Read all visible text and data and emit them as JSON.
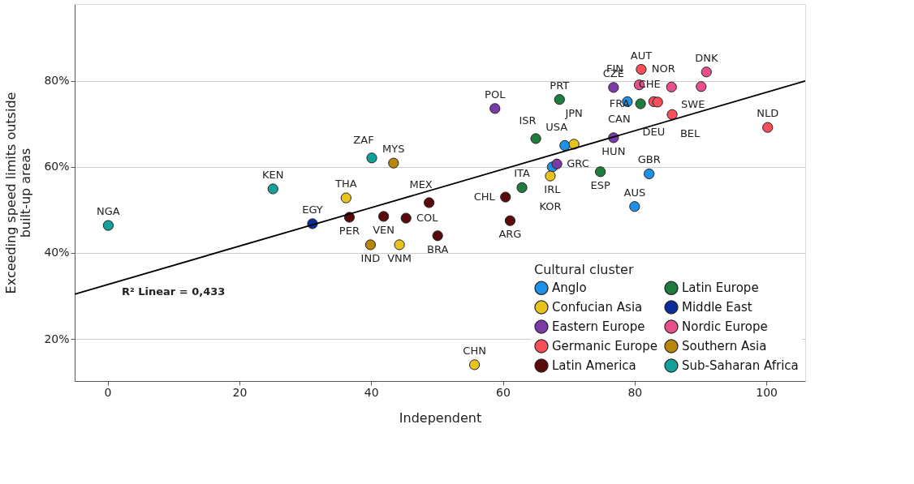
{
  "chart_data": {
    "type": "scatter",
    "xlabel": "Independent",
    "ylabel": "Exceeding speed limits outside built-up areas",
    "legend_title": "Cultural cluster",
    "xlim": [
      -5.0,
      105.9
    ],
    "ylim": [
      10.2,
      97.9
    ],
    "xticks": [
      0,
      20,
      40,
      60,
      80,
      100
    ],
    "yticks": [
      {
        "value": 20,
        "label": "20%"
      },
      {
        "value": 40,
        "label": "40%"
      },
      {
        "value": 60,
        "label": "60%"
      },
      {
        "value": 80,
        "label": "80%"
      }
    ],
    "grid": "y",
    "legend": "bottom right",
    "marker": "circle",
    "series": [
      {
        "name": "Anglo",
        "color": "#1e90e6",
        "x": [
          78.9,
          69.4,
          67.5,
          82.2,
          80.0
        ],
        "values": [
          75.2,
          65.0,
          60.0,
          58.4,
          50.8
        ]
      },
      {
        "name": "Confucian Asia",
        "color": "#e8c31e",
        "x": [
          70.8,
          67.2,
          55.7,
          36.2,
          44.3
        ],
        "values": [
          65.3,
          57.9,
          14.0,
          52.8,
          41.9
        ]
      },
      {
        "name": "Eastern Europe",
        "color": "#7a3ba8",
        "x": [
          58.8,
          76.8,
          76.8,
          68.2
        ],
        "values": [
          73.6,
          78.5,
          66.8,
          60.7
        ]
      },
      {
        "name": "Germanic Europe",
        "color": "#f5505a",
        "x": [
          81.0,
          82.9,
          83.5,
          85.7,
          100.2
        ],
        "values": [
          82.7,
          75.2,
          75.1,
          72.2,
          69.2
        ]
      },
      {
        "name": "Latin America",
        "color": "#5a0a0a",
        "x": [
          36.7,
          41.9,
          45.3,
          48.8,
          50.1,
          60.4,
          61.1
        ],
        "values": [
          48.3,
          48.5,
          48.1,
          51.7,
          44.0,
          53.0,
          47.5
        ]
      },
      {
        "name": "Latin Europe",
        "color": "#1e7d3c",
        "x": [
          68.6,
          65.0,
          80.9,
          74.8,
          62.9
        ],
        "values": [
          75.7,
          66.6,
          74.7,
          58.9,
          55.2
        ]
      },
      {
        "name": "Middle East",
        "color": "#0a2d9b",
        "x": [
          31.1
        ],
        "values": [
          46.8
        ]
      },
      {
        "name": "Nordic Europe",
        "color": "#e8508c",
        "x": [
          80.7,
          85.6,
          90.9,
          90.1
        ],
        "values": [
          79.1,
          78.6,
          82.1,
          78.7
        ]
      },
      {
        "name": "Southern Asia",
        "color": "#b8860b",
        "x": [
          39.9,
          43.4
        ],
        "values": [
          41.9,
          60.9
        ]
      },
      {
        "name": "Sub-Saharan Africa",
        "color": "#13a09a",
        "x": [
          0.1,
          25.1,
          40.1
        ],
        "values": [
          46.4,
          54.9,
          62.1
        ]
      },
      {
        "type": "line",
        "color": "#000000",
        "marker": "none",
        "x": [
          -5.0,
          105.9
        ],
        "values": [
          30.4,
          80.0
        ]
      }
    ],
    "annotations": [
      {
        "text": "CAN",
        "x": 78.9,
        "y": 75.2
      },
      {
        "text": "USA",
        "x": 69.4,
        "y": 65.0
      },
      {
        "text": "IRL",
        "x": 67.5,
        "y": 60.0
      },
      {
        "text": "GBR",
        "x": 82.2,
        "y": 58.4
      },
      {
        "text": "AUS",
        "x": 80.0,
        "y": 50.8
      },
      {
        "text": "JPN",
        "x": 70.8,
        "y": 65.3
      },
      {
        "text": "KOR",
        "x": 67.2,
        "y": 57.9
      },
      {
        "text": "CHN",
        "x": 55.7,
        "y": 14.0
      },
      {
        "text": "THA",
        "x": 36.2,
        "y": 52.8
      },
      {
        "text": "VNM",
        "x": 44.3,
        "y": 41.9
      },
      {
        "text": "POL",
        "x": 58.8,
        "y": 73.6
      },
      {
        "text": "CZE",
        "x": 76.8,
        "y": 78.5
      },
      {
        "text": "HUN",
        "x": 76.8,
        "y": 66.8
      },
      {
        "text": "GRC",
        "x": 68.2,
        "y": 60.7
      },
      {
        "text": "AUT",
        "x": 81.0,
        "y": 82.7
      },
      {
        "text": "DEU",
        "x": 82.9,
        "y": 75.2
      },
      {
        "text": "CHE",
        "x": 83.5,
        "y": 75.1
      },
      {
        "text": "BEL",
        "x": 85.7,
        "y": 72.2
      },
      {
        "text": "NLD",
        "x": 100.2,
        "y": 69.2
      },
      {
        "text": "PER",
        "x": 36.7,
        "y": 48.3
      },
      {
        "text": "VEN",
        "x": 41.9,
        "y": 48.5
      },
      {
        "text": "COL",
        "x": 45.3,
        "y": 48.1
      },
      {
        "text": "MEX",
        "x": 48.8,
        "y": 51.7
      },
      {
        "text": "BRA",
        "x": 50.1,
        "y": 44.0
      },
      {
        "text": "CHL",
        "x": 60.4,
        "y": 53.0
      },
      {
        "text": "ARG",
        "x": 61.1,
        "y": 47.5
      },
      {
        "text": "PRT",
        "x": 68.6,
        "y": 75.7
      },
      {
        "text": "ISR",
        "x": 65.0,
        "y": 66.6
      },
      {
        "text": "FRA",
        "x": 80.9,
        "y": 74.7
      },
      {
        "text": "ESP",
        "x": 74.8,
        "y": 58.9
      },
      {
        "text": "ITA",
        "x": 62.9,
        "y": 55.2
      },
      {
        "text": "EGY",
        "x": 31.1,
        "y": 46.8
      },
      {
        "text": "FIN",
        "x": 80.7,
        "y": 79.1
      },
      {
        "text": "NOR",
        "x": 85.6,
        "y": 78.6
      },
      {
        "text": "DNK",
        "x": 90.9,
        "y": 82.1
      },
      {
        "text": "SWE",
        "x": 90.1,
        "y": 78.7
      },
      {
        "text": "IND",
        "x": 39.9,
        "y": 41.9
      },
      {
        "text": "MYS",
        "x": 43.4,
        "y": 60.9
      },
      {
        "text": "NGA",
        "x": 0.1,
        "y": 46.4
      },
      {
        "text": "KEN",
        "x": 25.1,
        "y": 54.9
      },
      {
        "text": "ZAF",
        "x": 40.1,
        "y": 62.1
      },
      "R² Linear = 0,433"
    ]
  }
}
